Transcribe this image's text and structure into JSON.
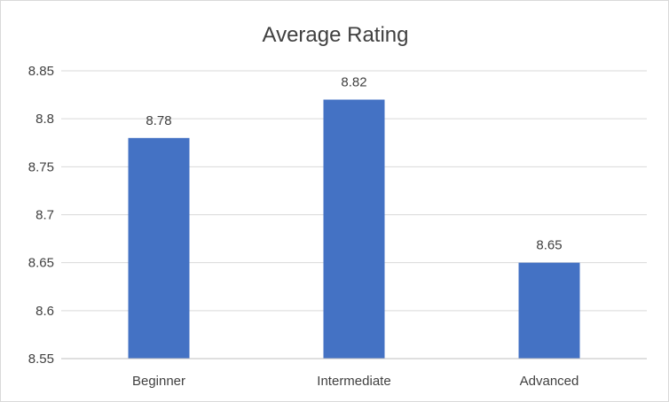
{
  "chart_data": {
    "type": "bar",
    "title": "Average Rating",
    "categories": [
      "Beginner",
      "Intermediate",
      "Advanced"
    ],
    "values": [
      8.78,
      8.82,
      8.65
    ],
    "value_labels": [
      "8.78",
      "8.82",
      "8.65"
    ],
    "ylim": [
      8.55,
      8.85
    ],
    "yticks": [
      8.55,
      8.6,
      8.65,
      8.7,
      8.75,
      8.8,
      8.85
    ],
    "ytick_labels": [
      "8.55",
      "8.6",
      "8.65",
      "8.7",
      "8.75",
      "8.8",
      "8.85"
    ],
    "grid": true,
    "legend": "none",
    "bar_color": "#4472c4"
  }
}
